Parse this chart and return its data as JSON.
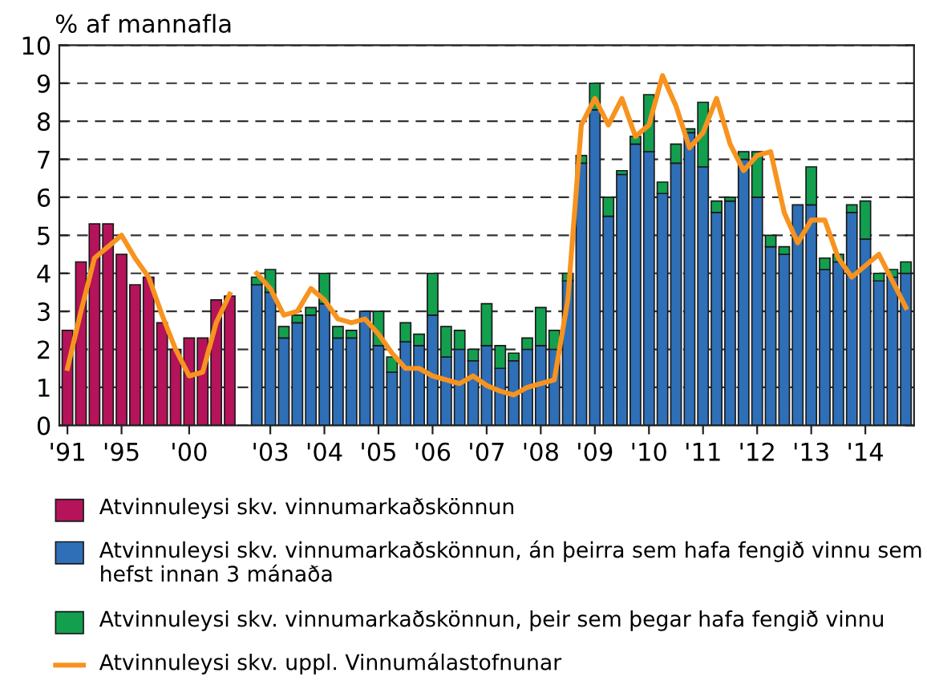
{
  "chart_data": {
    "type": "bar",
    "ylabel": "% af mannafla",
    "stacked": true,
    "grid": "y",
    "legend": "bottom",
    "ylim": [
      0,
      10
    ],
    "yticks": [
      0,
      1,
      2,
      3,
      4,
      5,
      6,
      7,
      8,
      9,
      10
    ],
    "categories": [
      "'91",
      null,
      null,
      null,
      "'95",
      null,
      null,
      null,
      null,
      "'00",
      null,
      null,
      null,
      null,
      null,
      "'03",
      null,
      null,
      null,
      "'04",
      null,
      null,
      null,
      "'05",
      null,
      null,
      null,
      "'06",
      null,
      null,
      null,
      "'07",
      null,
      null,
      null,
      "'08",
      null,
      null,
      null,
      "'09",
      null,
      null,
      null,
      "'10",
      null,
      null,
      null,
      "'11",
      null,
      null,
      null,
      "'12",
      null,
      null,
      null,
      "'13",
      null,
      null,
      null,
      "'14",
      null,
      null,
      null
    ],
    "series": [
      {
        "name": "Atvinnuleysi skv. vinnumarkaðskönnun",
        "color": "#b5135a",
        "values": [
          2.5,
          4.3,
          5.3,
          5.3,
          4.5,
          3.7,
          3.9,
          2.7,
          2.0,
          2.3,
          2.3,
          3.3,
          3.4,
          null,
          null,
          null,
          null,
          null,
          null,
          null,
          null,
          null,
          null,
          null,
          null,
          null,
          null,
          null,
          null,
          null,
          null,
          null,
          null,
          null,
          null,
          null,
          null,
          null,
          null,
          null,
          null,
          null,
          null,
          null,
          null,
          null,
          null,
          null,
          null,
          null,
          null,
          null,
          null,
          null,
          null,
          null,
          null,
          null,
          null,
          null,
          null,
          null,
          null
        ]
      },
      {
        "name": "Atvinnuleysi skv. vinnumarkaðskönnun, án þeirra sem hafa fengið vinnu sem hefst innan 3 mánaða",
        "color": "#2e6fb7",
        "values": [
          null,
          null,
          null,
          null,
          null,
          null,
          null,
          null,
          null,
          null,
          null,
          null,
          null,
          null,
          3.7,
          3.5,
          2.3,
          2.7,
          2.9,
          3.2,
          2.3,
          2.3,
          3.0,
          2.1,
          1.4,
          2.2,
          2.1,
          2.9,
          1.8,
          2.0,
          1.7,
          2.1,
          1.5,
          1.7,
          2.0,
          2.1,
          2.0,
          3.8,
          6.9,
          8.3,
          5.5,
          6.6,
          7.4,
          7.2,
          6.1,
          6.9,
          7.7,
          6.8,
          5.6,
          5.9,
          7.0,
          6.0,
          4.7,
          4.5,
          5.8,
          5.8,
          4.1,
          4.3,
          5.6,
          4.9,
          3.8,
          3.9,
          4.0
        ]
      },
      {
        "name": "Atvinnuleysi skv. vinnumarkaðskönnun, þeir sem þegar hafa fengið vinnu",
        "color": "#12a04f",
        "values": [
          null,
          null,
          null,
          null,
          null,
          null,
          null,
          null,
          null,
          null,
          null,
          null,
          null,
          null,
          0.2,
          0.6,
          0.3,
          0.2,
          0.2,
          0.8,
          0.3,
          0.2,
          null,
          0.9,
          0.4,
          0.5,
          0.3,
          1.1,
          0.8,
          0.5,
          0.3,
          1.1,
          0.6,
          0.2,
          0.3,
          1.0,
          0.5,
          0.2,
          0.2,
          0.7,
          0.5,
          0.1,
          0.2,
          1.5,
          0.3,
          0.5,
          0.1,
          1.7,
          0.3,
          0.1,
          0.2,
          1.2,
          0.3,
          0.2,
          null,
          1.0,
          0.3,
          0.2,
          0.2,
          1.0,
          0.2,
          0.2,
          0.3
        ]
      },
      {
        "name": "Atvinnuleysi skv. uppl. Vinnumálastofnunar",
        "type": "line",
        "color": "#f7931e",
        "values": [
          1.5,
          3.0,
          4.4,
          4.7,
          5.0,
          4.4,
          3.9,
          2.9,
          2.0,
          1.3,
          1.4,
          2.7,
          3.45,
          null,
          4.0,
          3.6,
          2.9,
          3.0,
          3.6,
          3.3,
          2.8,
          2.7,
          2.8,
          2.4,
          1.9,
          1.5,
          1.5,
          1.3,
          1.2,
          1.1,
          1.3,
          1.05,
          0.9,
          0.8,
          1.0,
          1.1,
          1.2,
          3.3,
          7.9,
          8.6,
          7.9,
          8.6,
          7.6,
          7.9,
          9.2,
          8.4,
          7.3,
          7.7,
          8.6,
          7.4,
          6.7,
          7.1,
          7.2,
          5.6,
          4.8,
          5.4,
          5.4,
          4.4,
          3.9,
          4.2,
          4.5,
          3.8,
          3.1
        ]
      }
    ]
  }
}
